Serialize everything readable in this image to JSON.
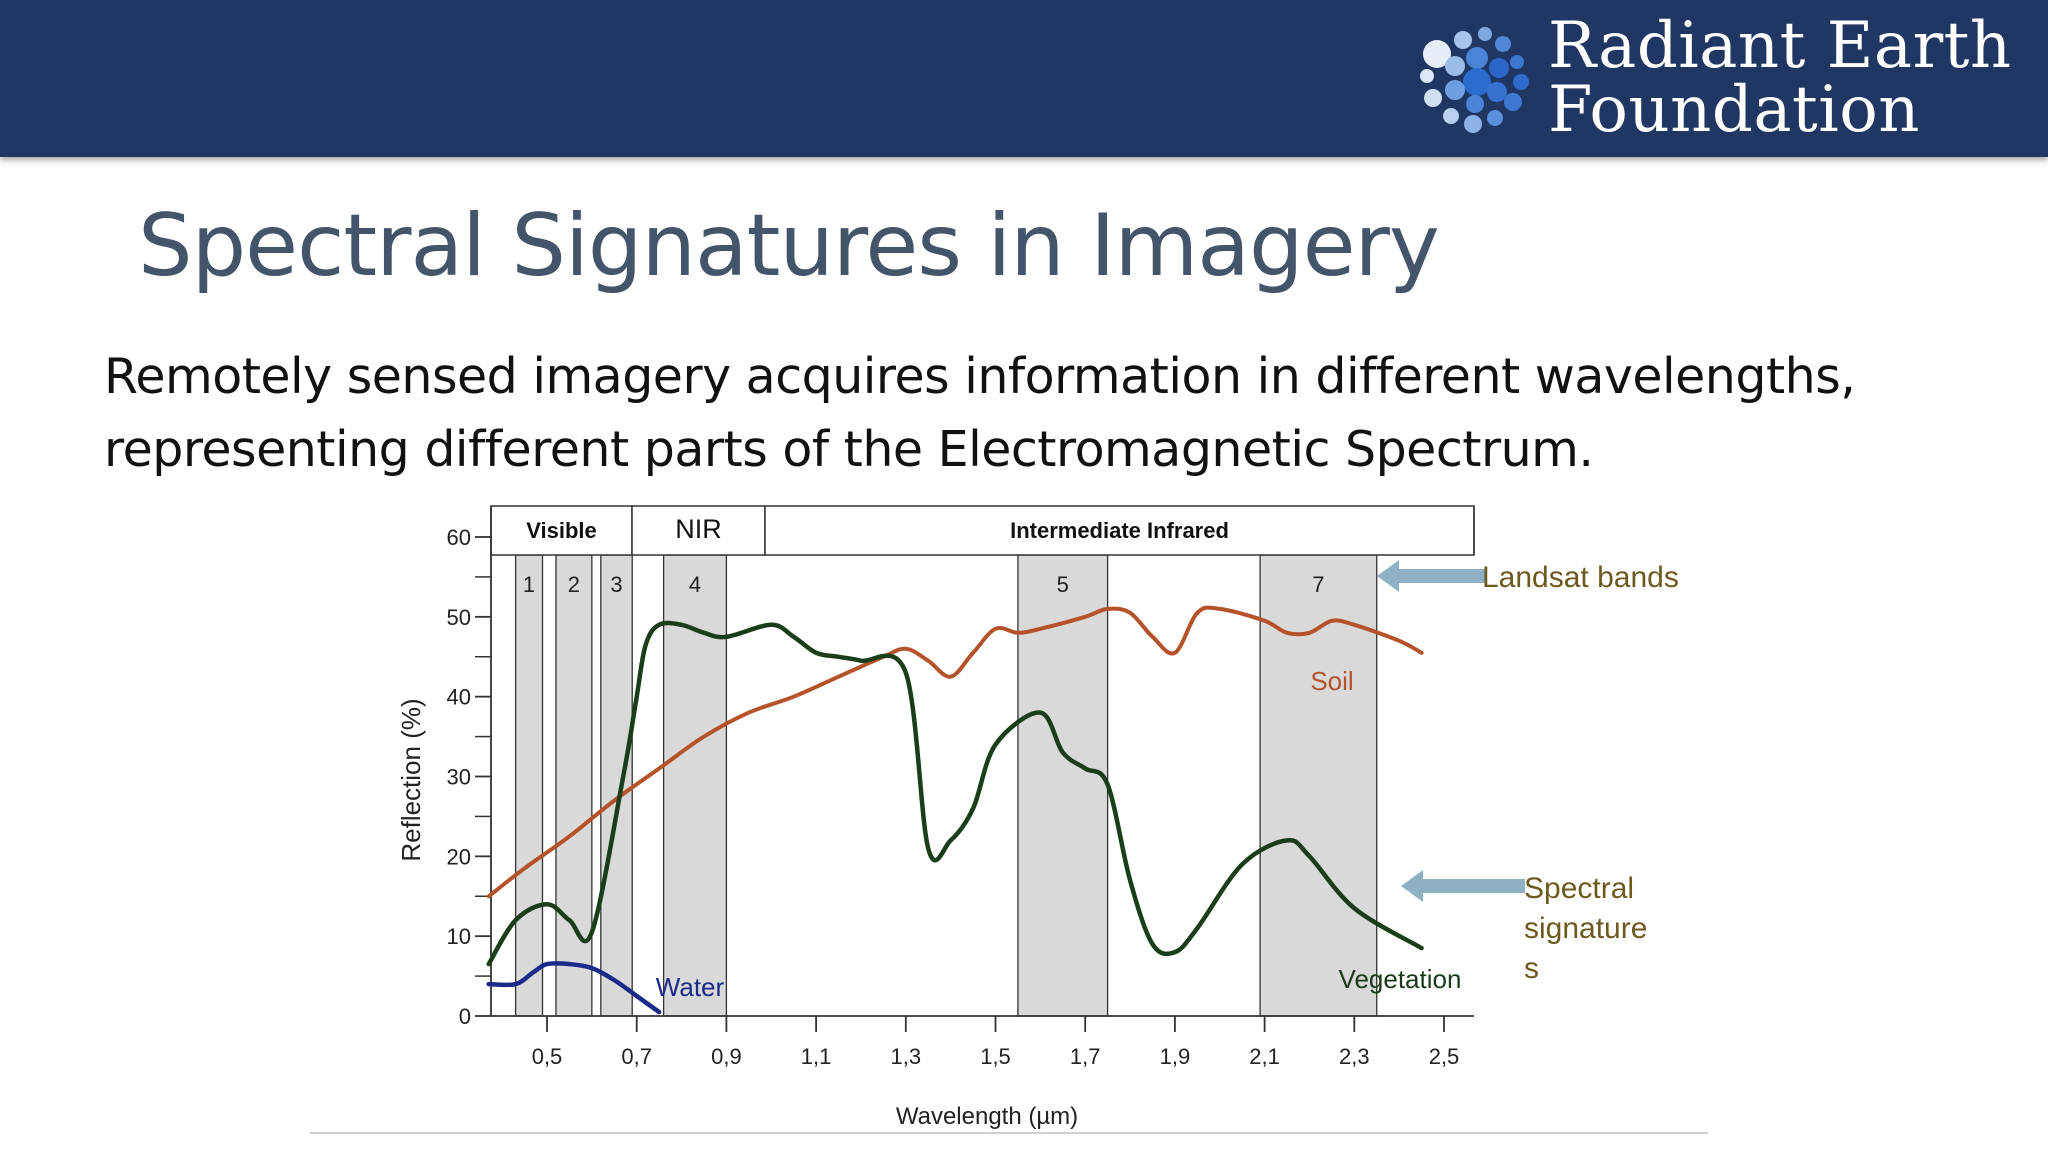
{
  "brand": {
    "line1": "Radiant Earth",
    "line2": "Foundation"
  },
  "title": "Spectral Signatures in Imagery",
  "body": {
    "line1": "Remotely sensed imagery acquires information in different wavelengths,",
    "line2": "representing different parts of the Electromagnetic Spectrum."
  },
  "colors": {
    "header": "#213763",
    "title": "#44546a",
    "soil": "#b5522a",
    "vegetation": "#1a3d1a",
    "water": "#1a2a8a",
    "band_fill": "#d9d9d9",
    "arrow": "#8fb1c4",
    "annotation_text": "#6b5a1e"
  },
  "chart_data": {
    "type": "line",
    "xlabel": "Wavelength (µm)",
    "ylabel": "Reflection (%)",
    "xlim": [
      0.37,
      2.45
    ],
    "ylim": [
      0,
      60
    ],
    "x_ticks": [
      0.5,
      0.7,
      0.9,
      1.1,
      1.3,
      1.5,
      1.7,
      1.9,
      2.1,
      2.3,
      2.5
    ],
    "x_tick_labels": [
      "0,5",
      "0,7",
      "0,9",
      "1,1",
      "1,3",
      "1,5",
      "1,7",
      "1,9",
      "2,1",
      "2,3",
      "2,5"
    ],
    "y_ticks": [
      0,
      10,
      20,
      30,
      40,
      50,
      60
    ],
    "y_tick_labels": [
      "0",
      "10",
      "20",
      "30",
      "40",
      "50",
      "60"
    ],
    "regions": [
      {
        "label": "Visible",
        "x0": 0.37,
        "x1": 0.7
      },
      {
        "label": "NIR",
        "x0": 0.7,
        "x1": 1.0
      },
      {
        "label": "Intermediate Infrared",
        "x0": 1.0,
        "x1": 2.6
      }
    ],
    "landsat_bands": [
      {
        "label": "1",
        "x0": 0.43,
        "x1": 0.49
      },
      {
        "label": "2",
        "x0": 0.52,
        "x1": 0.6
      },
      {
        "label": "3",
        "x0": 0.62,
        "x1": 0.69
      },
      {
        "label": "4",
        "x0": 0.76,
        "x1": 0.9
      },
      {
        "label": "5",
        "x0": 1.55,
        "x1": 1.75
      },
      {
        "label": "7",
        "x0": 2.09,
        "x1": 2.35
      }
    ],
    "series": [
      {
        "name": "Soil",
        "x": [
          0.37,
          0.45,
          0.55,
          0.65,
          0.75,
          0.85,
          0.95,
          1.05,
          1.15,
          1.25,
          1.3,
          1.35,
          1.4,
          1.45,
          1.5,
          1.55,
          1.6,
          1.7,
          1.75,
          1.8,
          1.85,
          1.9,
          1.95,
          2.0,
          2.1,
          2.15,
          2.2,
          2.25,
          2.3,
          2.4,
          2.45
        ],
        "y": [
          15,
          18.5,
          22.5,
          27,
          31,
          35,
          38,
          40,
          42.5,
          45,
          46,
          44.5,
          42.5,
          45.5,
          48.5,
          48,
          48.5,
          50,
          51,
          50.5,
          47.5,
          45.5,
          50.5,
          51,
          49.5,
          48,
          48,
          49.5,
          49,
          47,
          45.5
        ]
      },
      {
        "name": "Vegetation",
        "x": [
          0.37,
          0.43,
          0.5,
          0.55,
          0.6,
          0.67,
          0.7,
          0.72,
          0.75,
          0.8,
          0.85,
          0.9,
          1.0,
          1.05,
          1.1,
          1.15,
          1.2,
          1.3,
          1.35,
          1.4,
          1.45,
          1.5,
          1.6,
          1.65,
          1.7,
          1.75,
          1.8,
          1.85,
          1.9,
          1.95,
          2.05,
          2.15,
          2.2,
          2.3,
          2.45
        ],
        "y": [
          6.5,
          12,
          14,
          12,
          10.5,
          30,
          40,
          46.5,
          49,
          49,
          48,
          47.5,
          49,
          47.5,
          45.5,
          45,
          44.5,
          43,
          21,
          22,
          26,
          34,
          38,
          33,
          31,
          29,
          17,
          9,
          8,
          11,
          19,
          22,
          20,
          13.5,
          8.5
        ]
      },
      {
        "name": "Water",
        "x": [
          0.37,
          0.43,
          0.47,
          0.5,
          0.55,
          0.6,
          0.65,
          0.7,
          0.75
        ],
        "y": [
          4,
          4,
          5.5,
          6.5,
          6.5,
          6,
          4.5,
          2.5,
          0.5
        ]
      }
    ],
    "annotations": [
      {
        "text": "Landsat bands",
        "points_to": "landsat_bands"
      },
      {
        "text": "Spectral signatures",
        "points_to": "series"
      }
    ]
  }
}
